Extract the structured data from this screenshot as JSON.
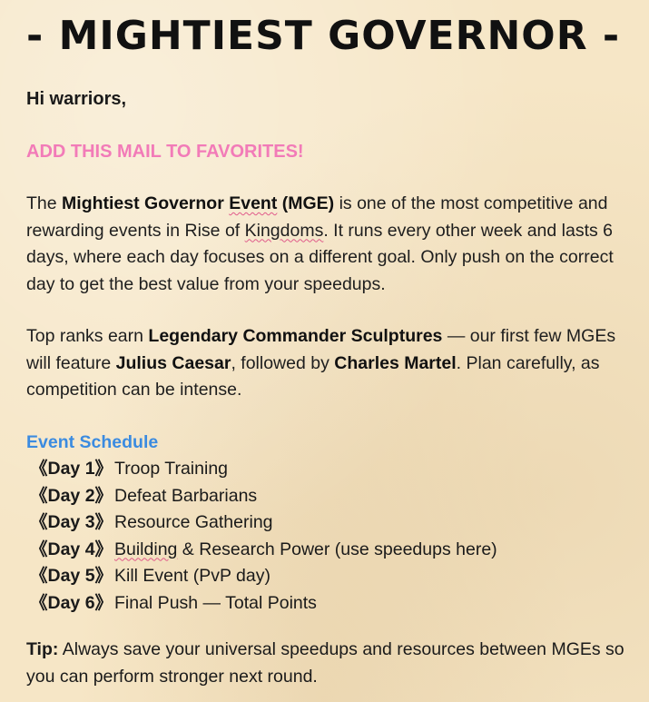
{
  "mail": {
    "title": "- MIGHTIEST GOVERNOR -",
    "greeting": "Hi warriors,",
    "favorite_notice": "ADD THIS MAIL TO FAVORITES!",
    "intro": {
      "t1": "The ",
      "b1": "Mightiest Governor ",
      "b1_squig": "Event",
      "b1_end": " (MGE)",
      "t2": " is one of the most competitive and rewarding events in ",
      "t3": "Rise of ",
      "t3_squig": "Kingdoms",
      "t4": ". It runs every other week and lasts 6 days, where each day focuses on a different goal. Only push on the correct day to get the best value from your speedups."
    },
    "rewards": {
      "t1": "Top ranks earn ",
      "b1": "Legendary Commander Sculptures",
      "t2": " — our first few MGEs will feature ",
      "b2": "Julius Caesar",
      "t3": ", followed by ",
      "b3": "Charles Martel",
      "t4": ". Plan carefully, as competition can be intense."
    },
    "schedule_heading": "Event Schedule",
    "schedule": [
      {
        "tag": "《Day 1》",
        "text": "Troop Training"
      },
      {
        "tag": "《Day 2》",
        "text": "Defeat Barbarians"
      },
      {
        "tag": "《Day 3》",
        "text": "Resource Gathering"
      },
      {
        "tag": "《Day 4》",
        "text_squig": "Building",
        "text": " & Research Power (use speedups here)"
      },
      {
        "tag": "《Day 5》",
        "text": "Kill Event (PvP day)"
      },
      {
        "tag": "《Day 6》",
        "text": "Final Push — Total Points"
      }
    ],
    "tip": {
      "label": "Tip:",
      "text": " Always save your universal speedups and resources between MGEs so you can perform stronger next round."
    }
  },
  "colors": {
    "background": "#f6e6c6",
    "favorite_pink": "#f27bb8",
    "schedule_blue": "#3b8be0",
    "spellcheck_underline": "#e05a8a"
  }
}
